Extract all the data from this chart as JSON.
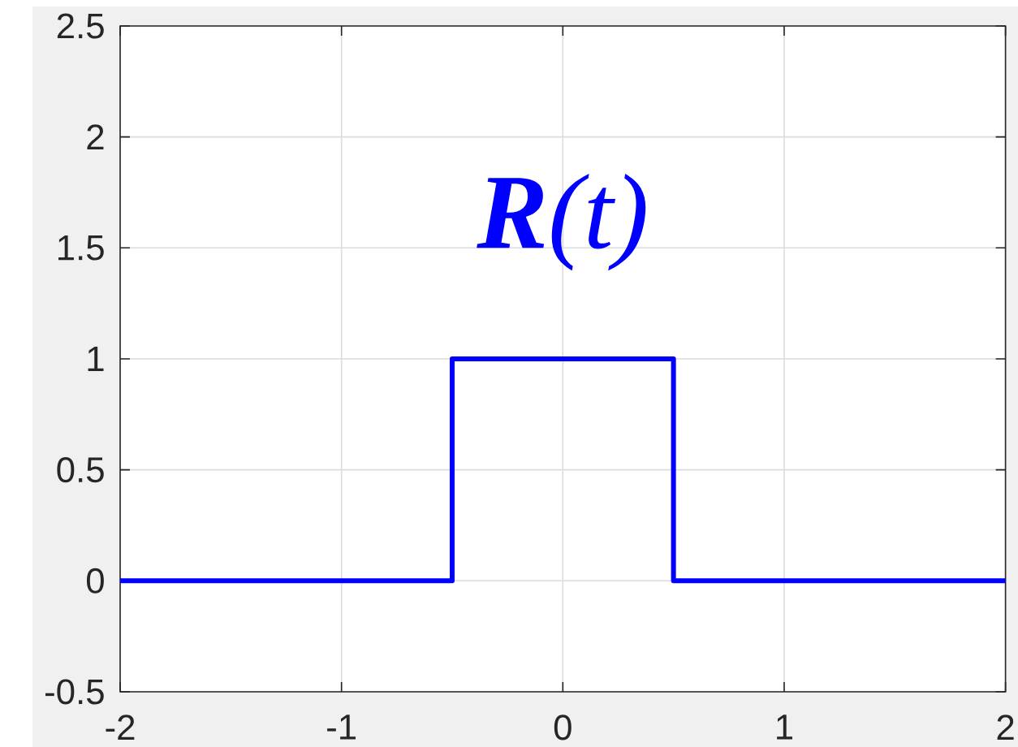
{
  "chart_data": {
    "type": "line",
    "x": [
      -2,
      -0.5,
      -0.5,
      0.5,
      0.5,
      2
    ],
    "series": [
      {
        "color": "#0000ff",
        "values": [
          0,
          0,
          1,
          1,
          0,
          0
        ]
      }
    ],
    "xlim": [
      -2,
      2
    ],
    "ylim": [
      -0.5,
      2.5
    ],
    "xticks": [
      -2,
      -1,
      0,
      1,
      2
    ],
    "yticks": [
      -0.5,
      0,
      0.5,
      1,
      1.5,
      2,
      2.5
    ],
    "grid": true,
    "line_style": "solid",
    "annotations": [
      "**R**(t)"
    ]
  }
}
